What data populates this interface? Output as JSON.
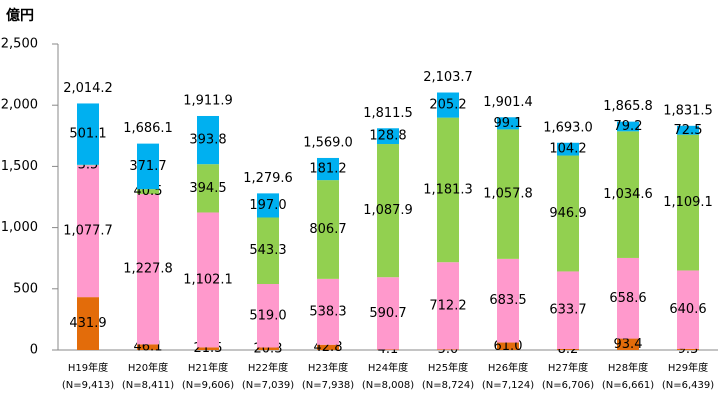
{
  "chart_data": {
    "type": "stacked_bar",
    "y_unit": "億円",
    "categories": [
      "H19年度",
      "H20年度",
      "H21年度",
      "H22年度",
      "H23年度",
      "H24年度",
      "H25年度",
      "H26年度",
      "H27年度",
      "H28年度",
      "H29年度"
    ],
    "sample_sizes": [
      "(N=9,413)",
      "(N=8,411)",
      "(N=9,606)",
      "(N=7,039)",
      "(N=7,938)",
      "(N=8,008)",
      "(N=8,724)",
      "(N=7,124)",
      "(N=6,706)",
      "(N=6,661)",
      "(N=6,439)"
    ],
    "series": [
      {
        "color": "#e36c0a",
        "values": [
          431.9,
          46.1,
          21.5,
          20.3,
          42.8,
          4.1,
          5.0,
          61.0,
          8.2,
          93.4,
          9.3
        ],
        "value_labels": [
          "431.9",
          "46.1",
          "21.5",
          "20.3",
          "42.8",
          "4.1",
          "5.0",
          "61.0",
          "8.2",
          "93.4",
          "9.3"
        ]
      },
      {
        "color": "#ff99cc",
        "values": [
          1077.7,
          1227.8,
          1102.1,
          519.0,
          538.3,
          590.7,
          712.2,
          683.5,
          633.7,
          658.6,
          640.6
        ],
        "value_labels": [
          "1,077.7",
          "1,227.8",
          "1,102.1",
          "519.0",
          "538.3",
          "590.7",
          "712.2",
          "683.5",
          "633.7",
          "658.6",
          "640.6"
        ]
      },
      {
        "color": "#92d050",
        "values": [
          3.5,
          40.5,
          394.5,
          543.3,
          806.7,
          1087.9,
          1181.3,
          1057.8,
          946.9,
          1034.6,
          1109.1
        ],
        "value_labels": [
          "3.5",
          "40.5",
          "394.5",
          "543.3",
          "806.7",
          "1,087.9",
          "1,181.3",
          "1,057.8",
          "946.9",
          "1,034.6",
          "1,109.1"
        ]
      },
      {
        "color": "#00b0f0",
        "values": [
          501.1,
          371.7,
          393.8,
          197.0,
          181.2,
          128.8,
          205.2,
          99.1,
          104.2,
          79.2,
          72.5
        ],
        "value_labels": [
          "501.1",
          "371.7",
          "393.8",
          "197.0",
          "181.2",
          "128.8",
          "205.2",
          "99.1",
          "104.2",
          "79.2",
          "72.5"
        ]
      }
    ],
    "totals": [
      2014.2,
      1686.1,
      1911.9,
      1279.6,
      1569.0,
      1811.5,
      2103.7,
      1901.4,
      1693.0,
      1865.8,
      1831.5
    ],
    "total_labels": [
      "2,014.2",
      "1,686.1",
      "1,911.9",
      "1,279.6",
      "1,569.0",
      "1,811.5",
      "2,103.7",
      "1,901.4",
      "1,693.0",
      "1,865.8",
      "1,831.5"
    ],
    "ylim": [
      0,
      2500
    ],
    "yticks": [
      0,
      500,
      {
        "value": 1000,
        "label": "1,000"
      },
      {
        "value": 1500,
        "label": "1,500"
      },
      {
        "value": 2000,
        "label": "2,000"
      },
      {
        "value": 2500,
        "label": "2,500"
      }
    ],
    "grid": false
  }
}
